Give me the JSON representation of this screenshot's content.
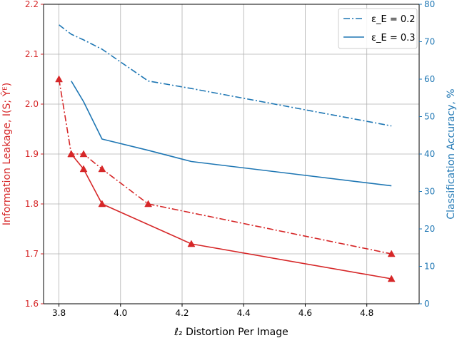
{
  "chart_data": {
    "type": "line",
    "xlabel": "ℓ₂ Distortion Per Image",
    "ylabel_left": "Information Leakage, I(S; Ŷᴱ)",
    "ylabel_right": "Classification Accuracy, %",
    "xlim": [
      3.75,
      4.97
    ],
    "ylim_left": [
      1.6,
      2.2
    ],
    "ylim_right": [
      0,
      80
    ],
    "xticks": [
      3.8,
      4.0,
      4.2,
      4.4,
      4.6,
      4.8
    ],
    "xtick_labels": [
      "3.8",
      "4.0",
      "4.2",
      "4.4",
      "4.6",
      "4.8"
    ],
    "yticks_left": [
      1.6,
      1.7,
      1.8,
      1.9,
      2.0,
      2.1,
      2.2
    ],
    "ytick_labels_left": [
      "1.6",
      "1.7",
      "1.8",
      "1.9",
      "2.0",
      "2.1",
      "2.2"
    ],
    "yticks_right": [
      0,
      10,
      20,
      30,
      40,
      50,
      60,
      70,
      80
    ],
    "ytick_labels_right": [
      "0",
      "10",
      "20",
      "30",
      "40",
      "50",
      "60",
      "70",
      "80"
    ],
    "grid": true,
    "legend_position": "top-right",
    "legend": [
      {
        "label": "ε_E = 0.2",
        "style": "dashdot"
      },
      {
        "label": "ε_E = 0.3",
        "style": "solid"
      }
    ],
    "colors": {
      "leakage": "#d62728",
      "accuracy": "#1f77b4"
    },
    "series": [
      {
        "axis": "left",
        "style": "dashdot",
        "marker": "triangle",
        "color": "#d62728",
        "x": [
          3.8,
          3.84,
          3.88,
          3.94,
          4.09,
          4.88
        ],
        "y": [
          2.05,
          1.9,
          1.9,
          1.87,
          1.8,
          1.7
        ]
      },
      {
        "axis": "left",
        "style": "solid",
        "marker": "triangle",
        "color": "#d62728",
        "x": [
          3.84,
          3.88,
          3.94,
          4.23,
          4.88
        ],
        "y": [
          1.9,
          1.87,
          1.8,
          1.72,
          1.65
        ]
      },
      {
        "axis": "right",
        "style": "dashdot",
        "marker": "none",
        "color": "#1f77b4",
        "x": [
          3.8,
          3.84,
          3.88,
          3.94,
          4.09,
          4.23,
          4.88
        ],
        "y": [
          74.5,
          72.0,
          70.5,
          68.0,
          59.5,
          57.5,
          47.5
        ]
      },
      {
        "axis": "right",
        "style": "solid",
        "marker": "none",
        "color": "#1f77b4",
        "x": [
          3.84,
          3.88,
          3.94,
          4.09,
          4.23,
          4.88
        ],
        "y": [
          59.5,
          54.0,
          44.0,
          41.0,
          38.0,
          31.5
        ]
      }
    ]
  }
}
